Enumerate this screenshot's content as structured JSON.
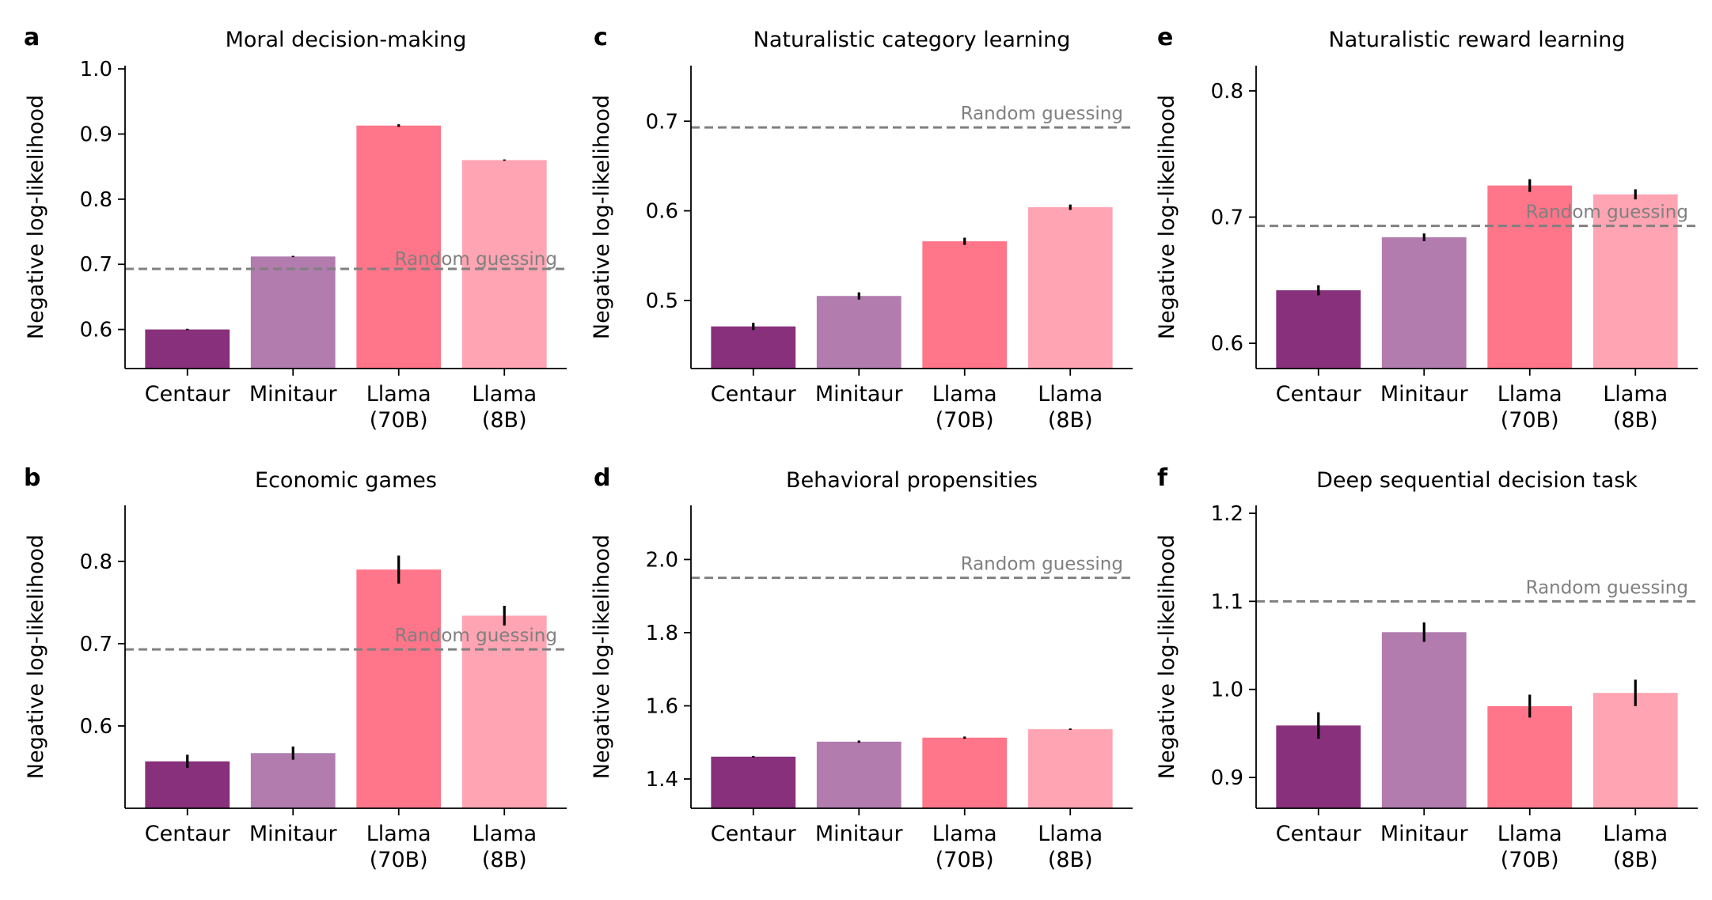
{
  "chart_data": [
    {
      "type": "bar",
      "panel_letter": "a",
      "title": "Moral decision-making",
      "ylabel": "Negative log-likelihood",
      "categories": [
        "Centaur",
        "Minitaur",
        "Llama\n(70B)",
        "Llama\n(8B)"
      ],
      "values": [
        0.6,
        0.712,
        0.913,
        0.86
      ],
      "errors": [
        0.001,
        0.001,
        0.002,
        0.001
      ],
      "ylim": [
        0.54,
        1.005
      ],
      "yticks": [
        0.6,
        0.7,
        0.8,
        0.9,
        1.0
      ],
      "reference": {
        "label": "Random guessing",
        "value": 0.693,
        "label_pos": "below-right"
      }
    },
    {
      "type": "bar",
      "panel_letter": "b",
      "title": "Economic games",
      "ylabel": "Negative log-likelihood",
      "categories": [
        "Centaur",
        "Minitaur",
        "Llama\n(70B)",
        "Llama\n(8B)"
      ],
      "values": [
        0.557,
        0.567,
        0.79,
        0.734
      ],
      "errors": [
        0.008,
        0.008,
        0.017,
        0.012
      ],
      "ylim": [
        0.5,
        0.868
      ],
      "yticks": [
        0.6,
        0.7,
        0.8
      ],
      "reference": {
        "label": "Random guessing",
        "value": 0.693,
        "label_pos": "above-right"
      }
    },
    {
      "type": "bar",
      "panel_letter": "c",
      "title": "Naturalistic category learning",
      "ylabel": "Negative log-likelihood",
      "categories": [
        "Centaur",
        "Minitaur",
        "Llama\n(70B)",
        "Llama\n(8B)"
      ],
      "values": [
        0.471,
        0.505,
        0.566,
        0.604
      ],
      "errors": [
        0.004,
        0.004,
        0.004,
        0.003
      ],
      "ylim": [
        0.424,
        0.762
      ],
      "yticks": [
        0.5,
        0.6,
        0.7
      ],
      "reference": {
        "label": "Random guessing",
        "value": 0.693,
        "label_pos": "above-right"
      }
    },
    {
      "type": "bar",
      "panel_letter": "d",
      "title": "Behavioral propensities",
      "ylabel": "Negative log-likelihood",
      "categories": [
        "Centaur",
        "Minitaur",
        "Llama\n(70B)",
        "Llama\n(8B)"
      ],
      "values": [
        1.461,
        1.502,
        1.513,
        1.536
      ],
      "errors": [
        0.002,
        0.003,
        0.003,
        0.002
      ],
      "ylim": [
        1.32,
        2.148
      ],
      "yticks": [
        1.4,
        1.6,
        1.8,
        2.0
      ],
      "reference": {
        "label": "Random guessing",
        "value": 1.95,
        "label_pos": "above-right"
      }
    },
    {
      "type": "bar",
      "panel_letter": "e",
      "title": "Naturalistic reward learning",
      "ylabel": "Negative log-likelihood",
      "categories": [
        "Centaur",
        "Minitaur",
        "Llama\n(70B)",
        "Llama\n(8B)"
      ],
      "values": [
        0.642,
        0.684,
        0.725,
        0.718
      ],
      "errors": [
        0.004,
        0.003,
        0.005,
        0.004
      ],
      "ylim": [
        0.58,
        0.82
      ],
      "yticks": [
        0.6,
        0.7,
        0.8
      ],
      "reference": {
        "label": "Random guessing",
        "value": 0.693,
        "label_pos": "above-right"
      }
    },
    {
      "type": "bar",
      "panel_letter": "f",
      "title": "Deep sequential decision task",
      "ylabel": "Negative log-likelihood",
      "categories": [
        "Centaur",
        "Minitaur",
        "Llama\n(70B)",
        "Llama\n(8B)"
      ],
      "values": [
        0.959,
        1.065,
        0.981,
        0.996
      ],
      "errors": [
        0.015,
        0.011,
        0.013,
        0.015
      ],
      "ylim": [
        0.865,
        1.209
      ],
      "yticks": [
        0.9,
        1.0,
        1.1,
        1.2
      ],
      "reference": {
        "label": "Random guessing",
        "value": 1.1,
        "label_pos": "above-right"
      }
    }
  ],
  "colors": {
    "bars": [
      "#88307c",
      "#b27cae",
      "#ff7589",
      "#ffa4b2"
    ],
    "reference_line": "#808080",
    "axis": "#000000"
  }
}
